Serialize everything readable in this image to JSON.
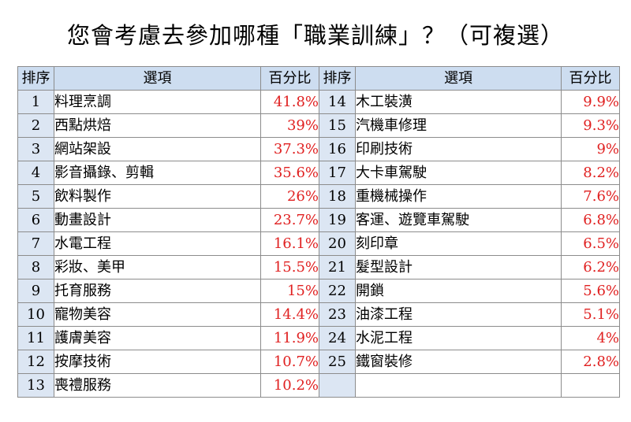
{
  "title": "您會考慮去參加哪種「職業訓練」？（可複選）",
  "headers": {
    "rank": "排序",
    "option": "選項",
    "percent": "百分比"
  },
  "chart_data": {
    "type": "table",
    "title": "您會考慮去參加哪種「職業訓練」？（可複選）",
    "columns": [
      "排序",
      "選項",
      "百分比"
    ],
    "rows": [
      {
        "rank": "1",
        "option": "料理烹調",
        "percent": "41.8%"
      },
      {
        "rank": "2",
        "option": "西點烘焙",
        "percent": "39%"
      },
      {
        "rank": "3",
        "option": "網站架設",
        "percent": "37.3%"
      },
      {
        "rank": "4",
        "option": "影音攝錄、剪輯",
        "percent": "35.6%"
      },
      {
        "rank": "5",
        "option": "飲料製作",
        "percent": "26%"
      },
      {
        "rank": "6",
        "option": "動畫設計",
        "percent": "23.7%"
      },
      {
        "rank": "7",
        "option": "水電工程",
        "percent": "16.1%"
      },
      {
        "rank": "8",
        "option": "彩妝、美甲",
        "percent": "15.5%"
      },
      {
        "rank": "9",
        "option": "托育服務",
        "percent": "15%"
      },
      {
        "rank": "10",
        "option": "寵物美容",
        "percent": "14.4%"
      },
      {
        "rank": "11",
        "option": "護膚美容",
        "percent": "11.9%"
      },
      {
        "rank": "12",
        "option": "按摩技術",
        "percent": "10.7%"
      },
      {
        "rank": "13",
        "option": "喪禮服務",
        "percent": "10.2%"
      },
      {
        "rank": "14",
        "option": "木工裝潢",
        "percent": "9.9%"
      },
      {
        "rank": "15",
        "option": "汽機車修理",
        "percent": "9.3%"
      },
      {
        "rank": "16",
        "option": "印刷技術",
        "percent": "9%"
      },
      {
        "rank": "17",
        "option": "大卡車駕駛",
        "percent": "8.2%"
      },
      {
        "rank": "18",
        "option": "重機械操作",
        "percent": "7.6%"
      },
      {
        "rank": "19",
        "option": "客運、遊覽車駕駛",
        "percent": "6.8%"
      },
      {
        "rank": "20",
        "option": "刻印章",
        "percent": "6.5%"
      },
      {
        "rank": "21",
        "option": "髮型設計",
        "percent": "6.2%"
      },
      {
        "rank": "22",
        "option": "開鎖",
        "percent": "5.6%"
      },
      {
        "rank": "23",
        "option": "油漆工程",
        "percent": "5.1%"
      },
      {
        "rank": "24",
        "option": "水泥工程",
        "percent": "4%"
      },
      {
        "rank": "25",
        "option": "鐵窗裝修",
        "percent": "2.8%"
      }
    ]
  }
}
